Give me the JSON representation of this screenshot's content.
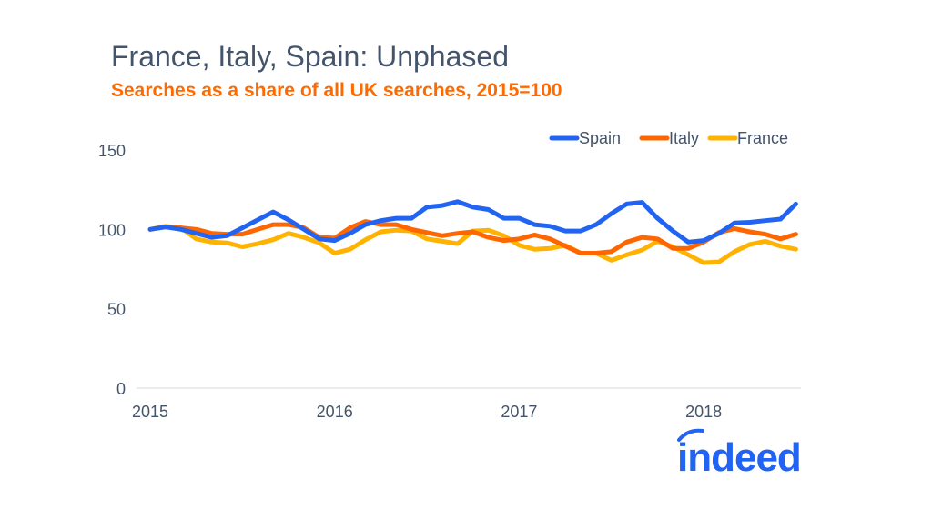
{
  "chart_data": {
    "type": "line",
    "title": "France, Italy, Spain: Unphased",
    "subtitle": "Searches as a share of all UK searches, 2015=100",
    "xlabel": "",
    "ylabel": "",
    "ylim": [
      0,
      150
    ],
    "yticks": [
      "0",
      "50",
      "100",
      "150"
    ],
    "xticks": [
      "2015",
      "2016",
      "2017",
      "2018"
    ],
    "x_start": "2015-01",
    "x_frequency": "monthly",
    "grid": false,
    "legend": "top-right",
    "series": [
      {
        "name": "Spain",
        "color": "#2164f3",
        "values": [
          100,
          101.5,
          100,
          97.5,
          95,
          96,
          101,
          106,
          111,
          106,
          100,
          94,
          93,
          97.5,
          103,
          105.5,
          107,
          107,
          114,
          115,
          117.5,
          114,
          112.5,
          107,
          107,
          103,
          102,
          99,
          99,
          103,
          110,
          116,
          117,
          107,
          99,
          92,
          93,
          97.5,
          104,
          104.5,
          105.5,
          106.5,
          116
        ]
      },
      {
        "name": "Italy",
        "color": "#ff6600",
        "values": [
          100,
          101.5,
          101,
          100,
          97.5,
          97,
          97,
          100,
          103,
          103,
          101,
          95,
          94.5,
          101,
          105,
          103,
          103,
          100,
          98,
          96,
          97.5,
          98.5,
          95,
          93,
          94,
          96.5,
          94,
          89.5,
          85,
          85,
          86,
          92,
          95,
          94,
          88,
          88,
          92,
          98,
          100.5,
          98.5,
          97,
          94,
          97
        ]
      },
      {
        "name": "France",
        "color": "#ffb300",
        "values": [
          100,
          102,
          101,
          94,
          92,
          91.5,
          89,
          91,
          93.5,
          97.5,
          95,
          91.5,
          85,
          87.5,
          93.5,
          98.5,
          99.5,
          99,
          94,
          92.5,
          91,
          99,
          99.5,
          96,
          90,
          87.5,
          88,
          90,
          85,
          85,
          80.5,
          84,
          87,
          92.5,
          89,
          84,
          79,
          79.5,
          86,
          90.5,
          92.5,
          89.5,
          87.5
        ]
      }
    ]
  },
  "logo": {
    "text": "indeed",
    "color": "#2164f3"
  },
  "colors": {
    "title": "#44546a",
    "subtitle": "#ff6a00",
    "axis_text": "#44546a"
  }
}
